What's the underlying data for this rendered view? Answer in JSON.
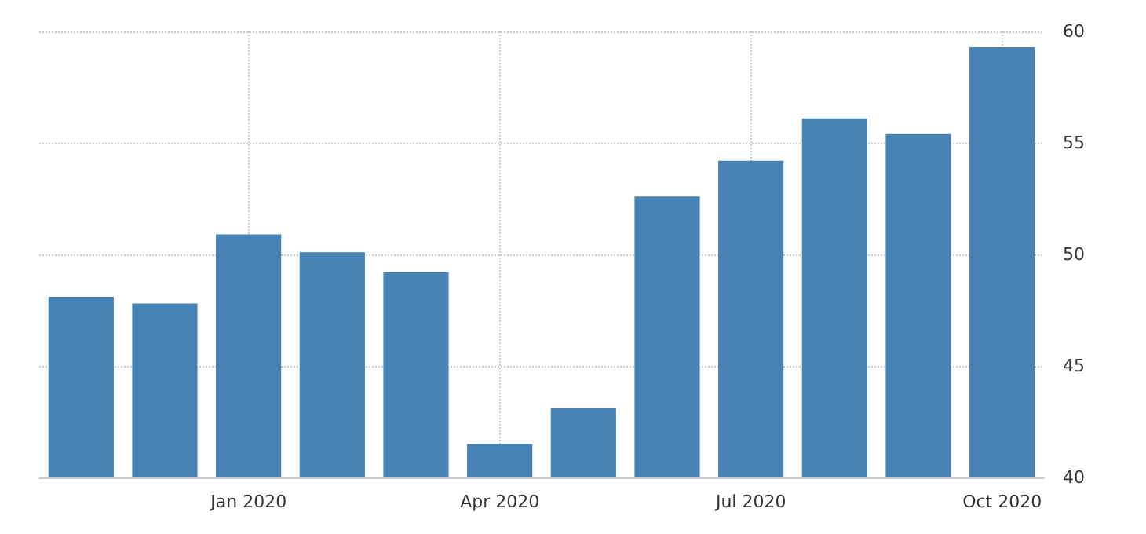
{
  "chart_data": {
    "type": "bar",
    "categories": [
      null,
      null,
      "Jan 2020",
      null,
      null,
      "Apr 2020",
      null,
      null,
      "Jul 2020",
      null,
      null,
      "Oct 2020"
    ],
    "values": [
      48.1,
      47.8,
      50.9,
      50.1,
      49.2,
      41.5,
      43.1,
      52.6,
      54.2,
      56.1,
      55.4,
      59.3
    ],
    "color": "#4682b4",
    "ylim": [
      40,
      60
    ],
    "yticks": [
      40,
      45,
      50,
      55,
      60
    ],
    "grid": true
  }
}
